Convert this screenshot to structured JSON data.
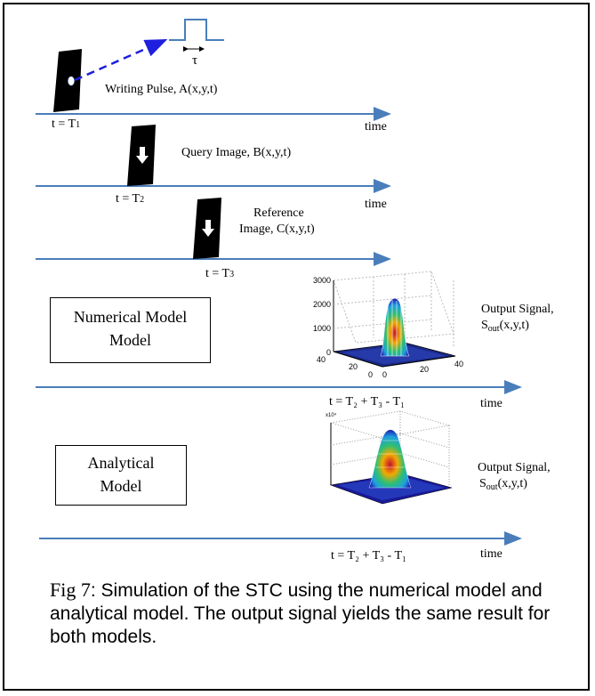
{
  "stage1": {
    "tau_symbol": "τ",
    "writing_pulse_label": "Writing  Pulse, A(x,y,t)",
    "time_label": "t = T",
    "time_sub": "1",
    "axis_label": "time"
  },
  "stage2": {
    "query_label": "Query Image, B(x,y,t)",
    "time_label": "t = T",
    "time_sub": "2",
    "axis_label": "time"
  },
  "stage3": {
    "reference_label_line1": "Reference",
    "reference_label_line2": "Image, C(x,y,t)",
    "time_label": "t = T",
    "time_sub": "3"
  },
  "numerical": {
    "box_line1": "Numerical Model",
    "box_line2": "Model",
    "output_line1": "Output Signal,",
    "output_sym": "S",
    "output_sub": "out",
    "output_args": "(x,y,t)",
    "time_label": "t = T₂ + T₃ - T₁",
    "axis_label": "time",
    "plot": {
      "z_ticks": [
        "3000",
        "2000",
        "1000",
        "0"
      ],
      "x_ticks": [
        "40",
        "20",
        "0",
        "0",
        "20",
        "40"
      ]
    }
  },
  "analytical": {
    "box_line1": "Analytical",
    "box_line2": "Model",
    "output_line1": "Output Signal,",
    "output_sym": "S",
    "output_sub": "out",
    "output_args": "(x,y,t)",
    "time_label": "t = T₂ + T₃ - T₁",
    "axis_label": "time",
    "plot": {
      "z_exp": "x10⁴"
    }
  },
  "caption": {
    "fig_label": "Fig 7",
    "text": ": Simulation of the STC using the numerical model and analytical model. The output signal yields the same result for both models."
  },
  "colors": {
    "axis": "#4a7ebb",
    "dashed_beam": "#1f1fdf",
    "pulse": "#4a7ebb"
  }
}
